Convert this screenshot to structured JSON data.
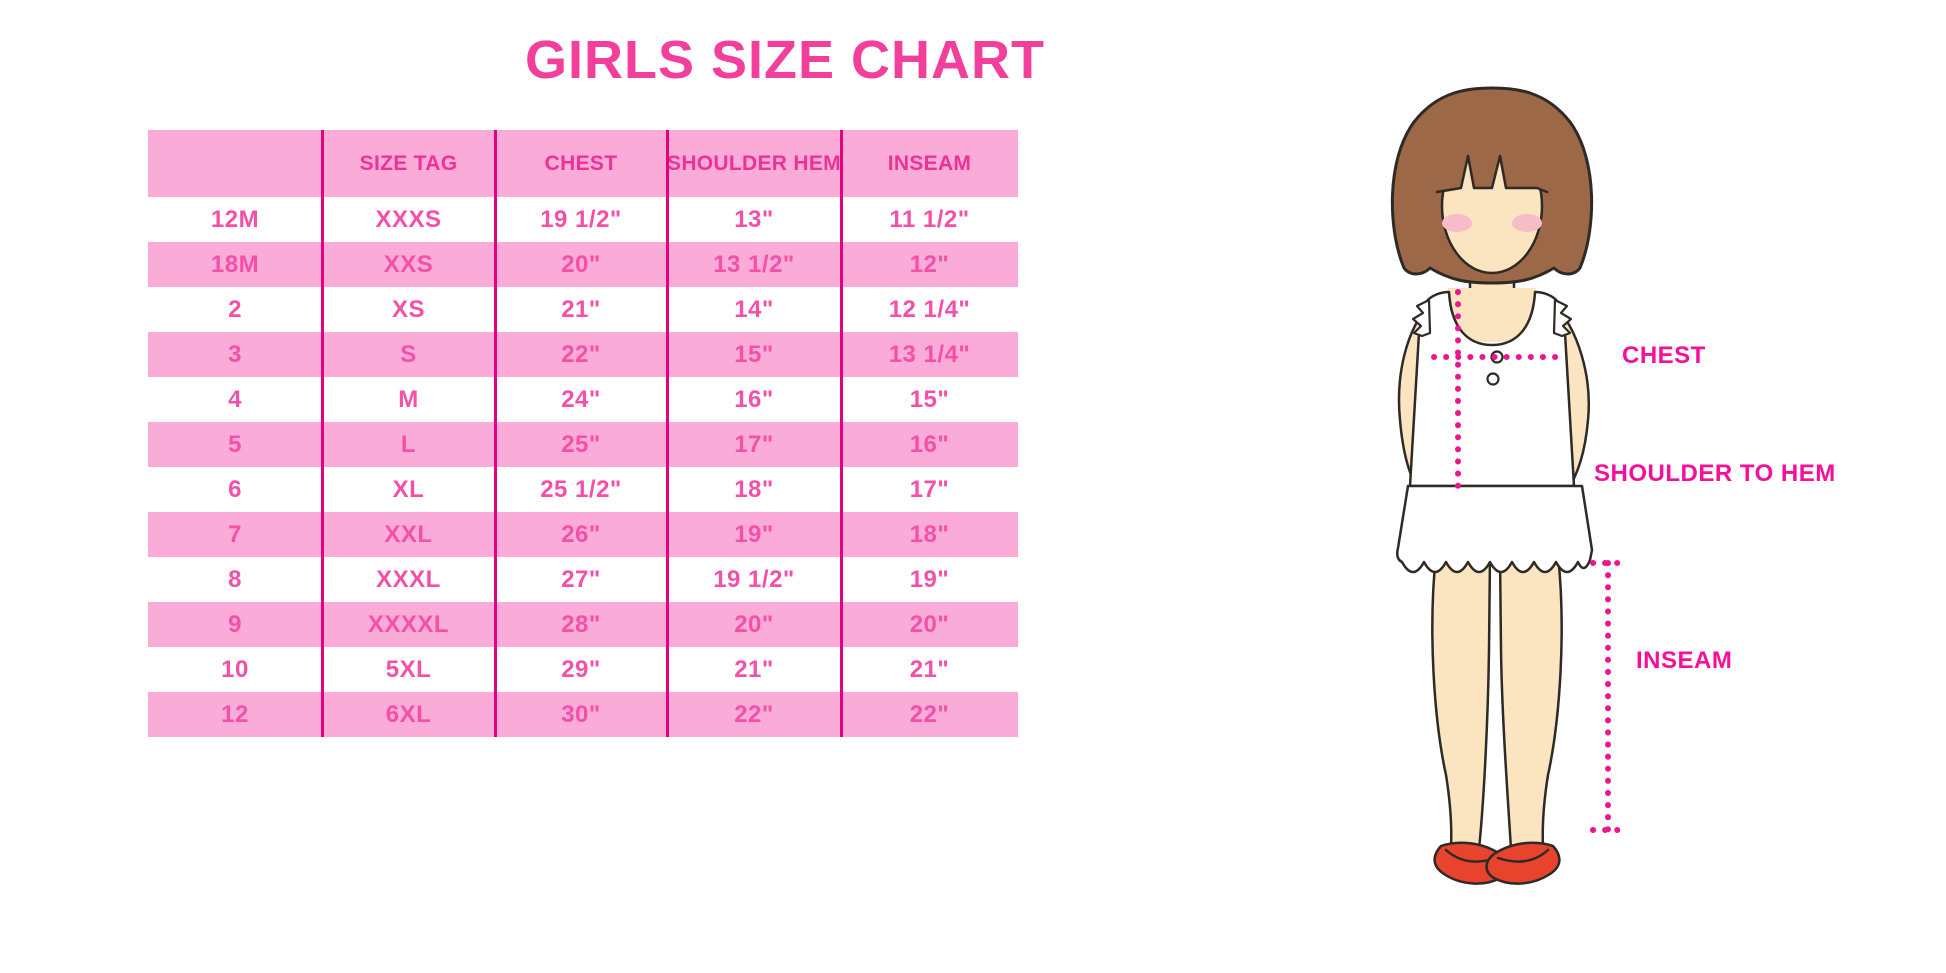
{
  "chart_data": {
    "type": "table",
    "title": "GIRLS SIZE CHART",
    "columns": [
      "",
      "SIZE TAG",
      "CHEST",
      "SHOULDER HEM",
      "INSEAM"
    ],
    "rows": [
      [
        "12M",
        "XXXS",
        "19 1/2\"",
        "13\"",
        "11 1/2\""
      ],
      [
        "18M",
        "XXS",
        "20\"",
        "13 1/2\"",
        "12\""
      ],
      [
        "2",
        "XS",
        "21\"",
        "14\"",
        "12 1/4\""
      ],
      [
        "3",
        "S",
        "22\"",
        "15\"",
        "13 1/4\""
      ],
      [
        "4",
        "M",
        "24\"",
        "16\"",
        "15\""
      ],
      [
        "5",
        "L",
        "25\"",
        "17\"",
        "16\""
      ],
      [
        "6",
        "XL",
        "25 1/2\"",
        "18\"",
        "17\""
      ],
      [
        "7",
        "XXL",
        "26\"",
        "19\"",
        "18\""
      ],
      [
        "8",
        "XXXL",
        "27\"",
        "19 1/2\"",
        "19\""
      ],
      [
        "9",
        "XXXXL",
        "28\"",
        "20\"",
        "20\""
      ],
      [
        "10",
        "5XL",
        "29\"",
        "21\"",
        "21\""
      ],
      [
        "12",
        "6XL",
        "30\"",
        "22\"",
        "22\""
      ]
    ],
    "layout_hints": {
      "striped_rows": "alternating white and pink, header pink",
      "grid": "vertical magenta column dividers only"
    }
  },
  "diagram": {
    "description": "cartoon girl with bob haircut, white sleeveless top and ruffled skirt, red shoes, dotted measurement guides",
    "labels": {
      "chest": "CHEST",
      "shoulder_to_hem": "SHOULDER TO HEM",
      "inseam": "INSEAM"
    }
  },
  "colors": {
    "title_pink": "#F23F9B",
    "header_text_pink": "#EE3195",
    "cell_text_pink": "#F550A8",
    "band_light_pink": "#FAABD7",
    "divider_magenta": "#E3017F",
    "label_magenta": "#F5109B",
    "dotted_line_magenta": "#EE1690",
    "hair_brown": "#9C6847",
    "skin": "#FBE5C1",
    "blush": "#F6BCC8",
    "shoe_red": "#E8432C",
    "outline": "#2E2A26"
  }
}
